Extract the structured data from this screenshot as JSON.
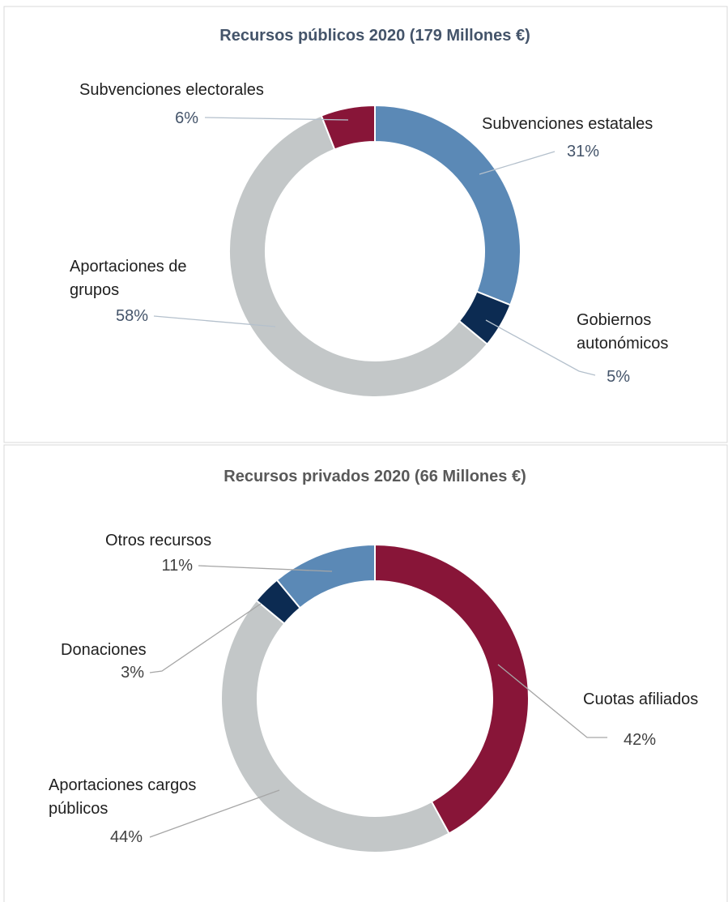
{
  "chart_data": [
    {
      "type": "donut",
      "title": "Recursos públicos 2020 (179 Millones €)",
      "categories": [
        "Subvenciones estatales",
        "Gobiernos autonómicos",
        "Aportaciones de grupos",
        "Subvenciones electorales"
      ],
      "values": [
        31,
        5,
        58,
        6
      ],
      "value_labels": [
        "31%",
        "5%",
        "58%",
        "6%"
      ],
      "colors": [
        "#5b89b6",
        "#0c2b52",
        "#c3c7c8",
        "#881538"
      ]
    },
    {
      "type": "donut",
      "title": "Recursos privados 2020 (66 Millones €)",
      "categories": [
        "Cuotas afiliados",
        "Aportaciones cargos públicos",
        "Donaciones",
        "Otros recursos"
      ],
      "values": [
        42,
        44,
        3,
        11
      ],
      "value_labels": [
        "42%",
        "44%",
        "3%",
        "11%"
      ],
      "colors": [
        "#881538",
        "#c3c7c8",
        "#0c2b52",
        "#5b89b6"
      ]
    }
  ]
}
